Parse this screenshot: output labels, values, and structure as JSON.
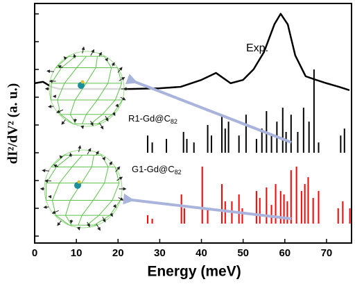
{
  "chart_data": {
    "type": "line",
    "xlabel": "Energy (meV)",
    "ylabel": "dI²/dV² (a. u.)",
    "xlim": [
      0,
      76
    ],
    "xticks": [
      0,
      10,
      20,
      30,
      40,
      50,
      60,
      70
    ],
    "ylim": [
      0,
      100
    ],
    "series": [
      {
        "name": "Exp.",
        "color": "#000000",
        "style": "line",
        "x": [
          0,
          2,
          4,
          6,
          23,
          30,
          35,
          40,
          43.5,
          47,
          50,
          52.5,
          55,
          57.5,
          59,
          60.7,
          62.5,
          65,
          67.5,
          70,
          73,
          75.5
        ],
        "values": [
          66.7,
          67.3,
          65.2,
          64.3,
          64.3,
          64.6,
          65.2,
          68.1,
          71.0,
          66.7,
          68.1,
          72.5,
          79.7,
          91.3,
          95.7,
          91.3,
          78.3,
          69.6,
          68.1,
          66.7,
          65.2,
          63.8
        ]
      },
      {
        "name": "R1-Gd@C82",
        "color": "#000000",
        "style": "stick",
        "x": [
          27.1,
          28.2,
          31.6,
          35.7,
          36.5,
          38.2,
          41.5,
          42.4,
          44.9,
          45.7,
          46.5,
          49.0,
          50.7,
          53.2,
          54.5,
          55.6,
          56.8,
          58.1,
          59.5,
          60.3,
          61.5,
          63.1,
          64.5,
          65.8,
          67.0,
          68.1,
          73.4,
          74.3
        ],
        "values": [
          7.2,
          4.3,
          5.8,
          8.7,
          5.8,
          4.3,
          11.6,
          7.2,
          15.9,
          10.1,
          13.0,
          7.2,
          15.9,
          5.8,
          10.1,
          17.4,
          7.2,
          13.0,
          18.8,
          8.7,
          15.9,
          8.7,
          18.8,
          13.0,
          34.8,
          4.3,
          7.2,
          10.1
        ]
      },
      {
        "name": "G1-Gd@C82",
        "color": "#ff0000",
        "style": "stick",
        "x": [
          27.1,
          28.2,
          35.2,
          35.9,
          40.2,
          41.5,
          44.9,
          45.7,
          47.3,
          49.0,
          49.8,
          53.2,
          54.0,
          55.6,
          56.8,
          57.8,
          59.0,
          59.8,
          60.6,
          61.5,
          62.8,
          64.0,
          64.8,
          65.6,
          66.8,
          68.1,
          72.8,
          73.9,
          75.6
        ],
        "values": [
          3.5,
          2.0,
          12.2,
          6.4,
          23.8,
          6.4,
          16.5,
          9.3,
          9.3,
          12.2,
          6.4,
          13.6,
          10.7,
          15.1,
          7.8,
          16.5,
          13.6,
          12.2,
          9.3,
          22.3,
          23.8,
          13.6,
          16.5,
          19.4,
          10.7,
          13.6,
          6.4,
          9.3,
          6.4
        ]
      }
    ]
  }
}
